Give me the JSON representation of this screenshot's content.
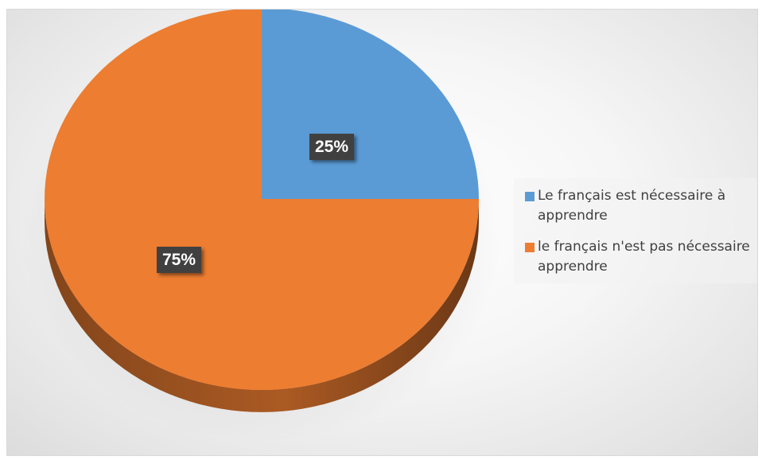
{
  "colors": {
    "blue": "#5b9bd5",
    "orange": "#ed7d31"
  },
  "chart_data": {
    "type": "pie",
    "style": "3d",
    "categories": [
      "Le français est nécessaire à apprendre",
      "le français n'est pas nécessaire apprendre"
    ],
    "values": [
      25,
      75
    ],
    "labels": [
      "25%",
      "75%"
    ],
    "colors": [
      "#5b9bd5",
      "#ed7d31"
    ],
    "legend_position": "right"
  }
}
